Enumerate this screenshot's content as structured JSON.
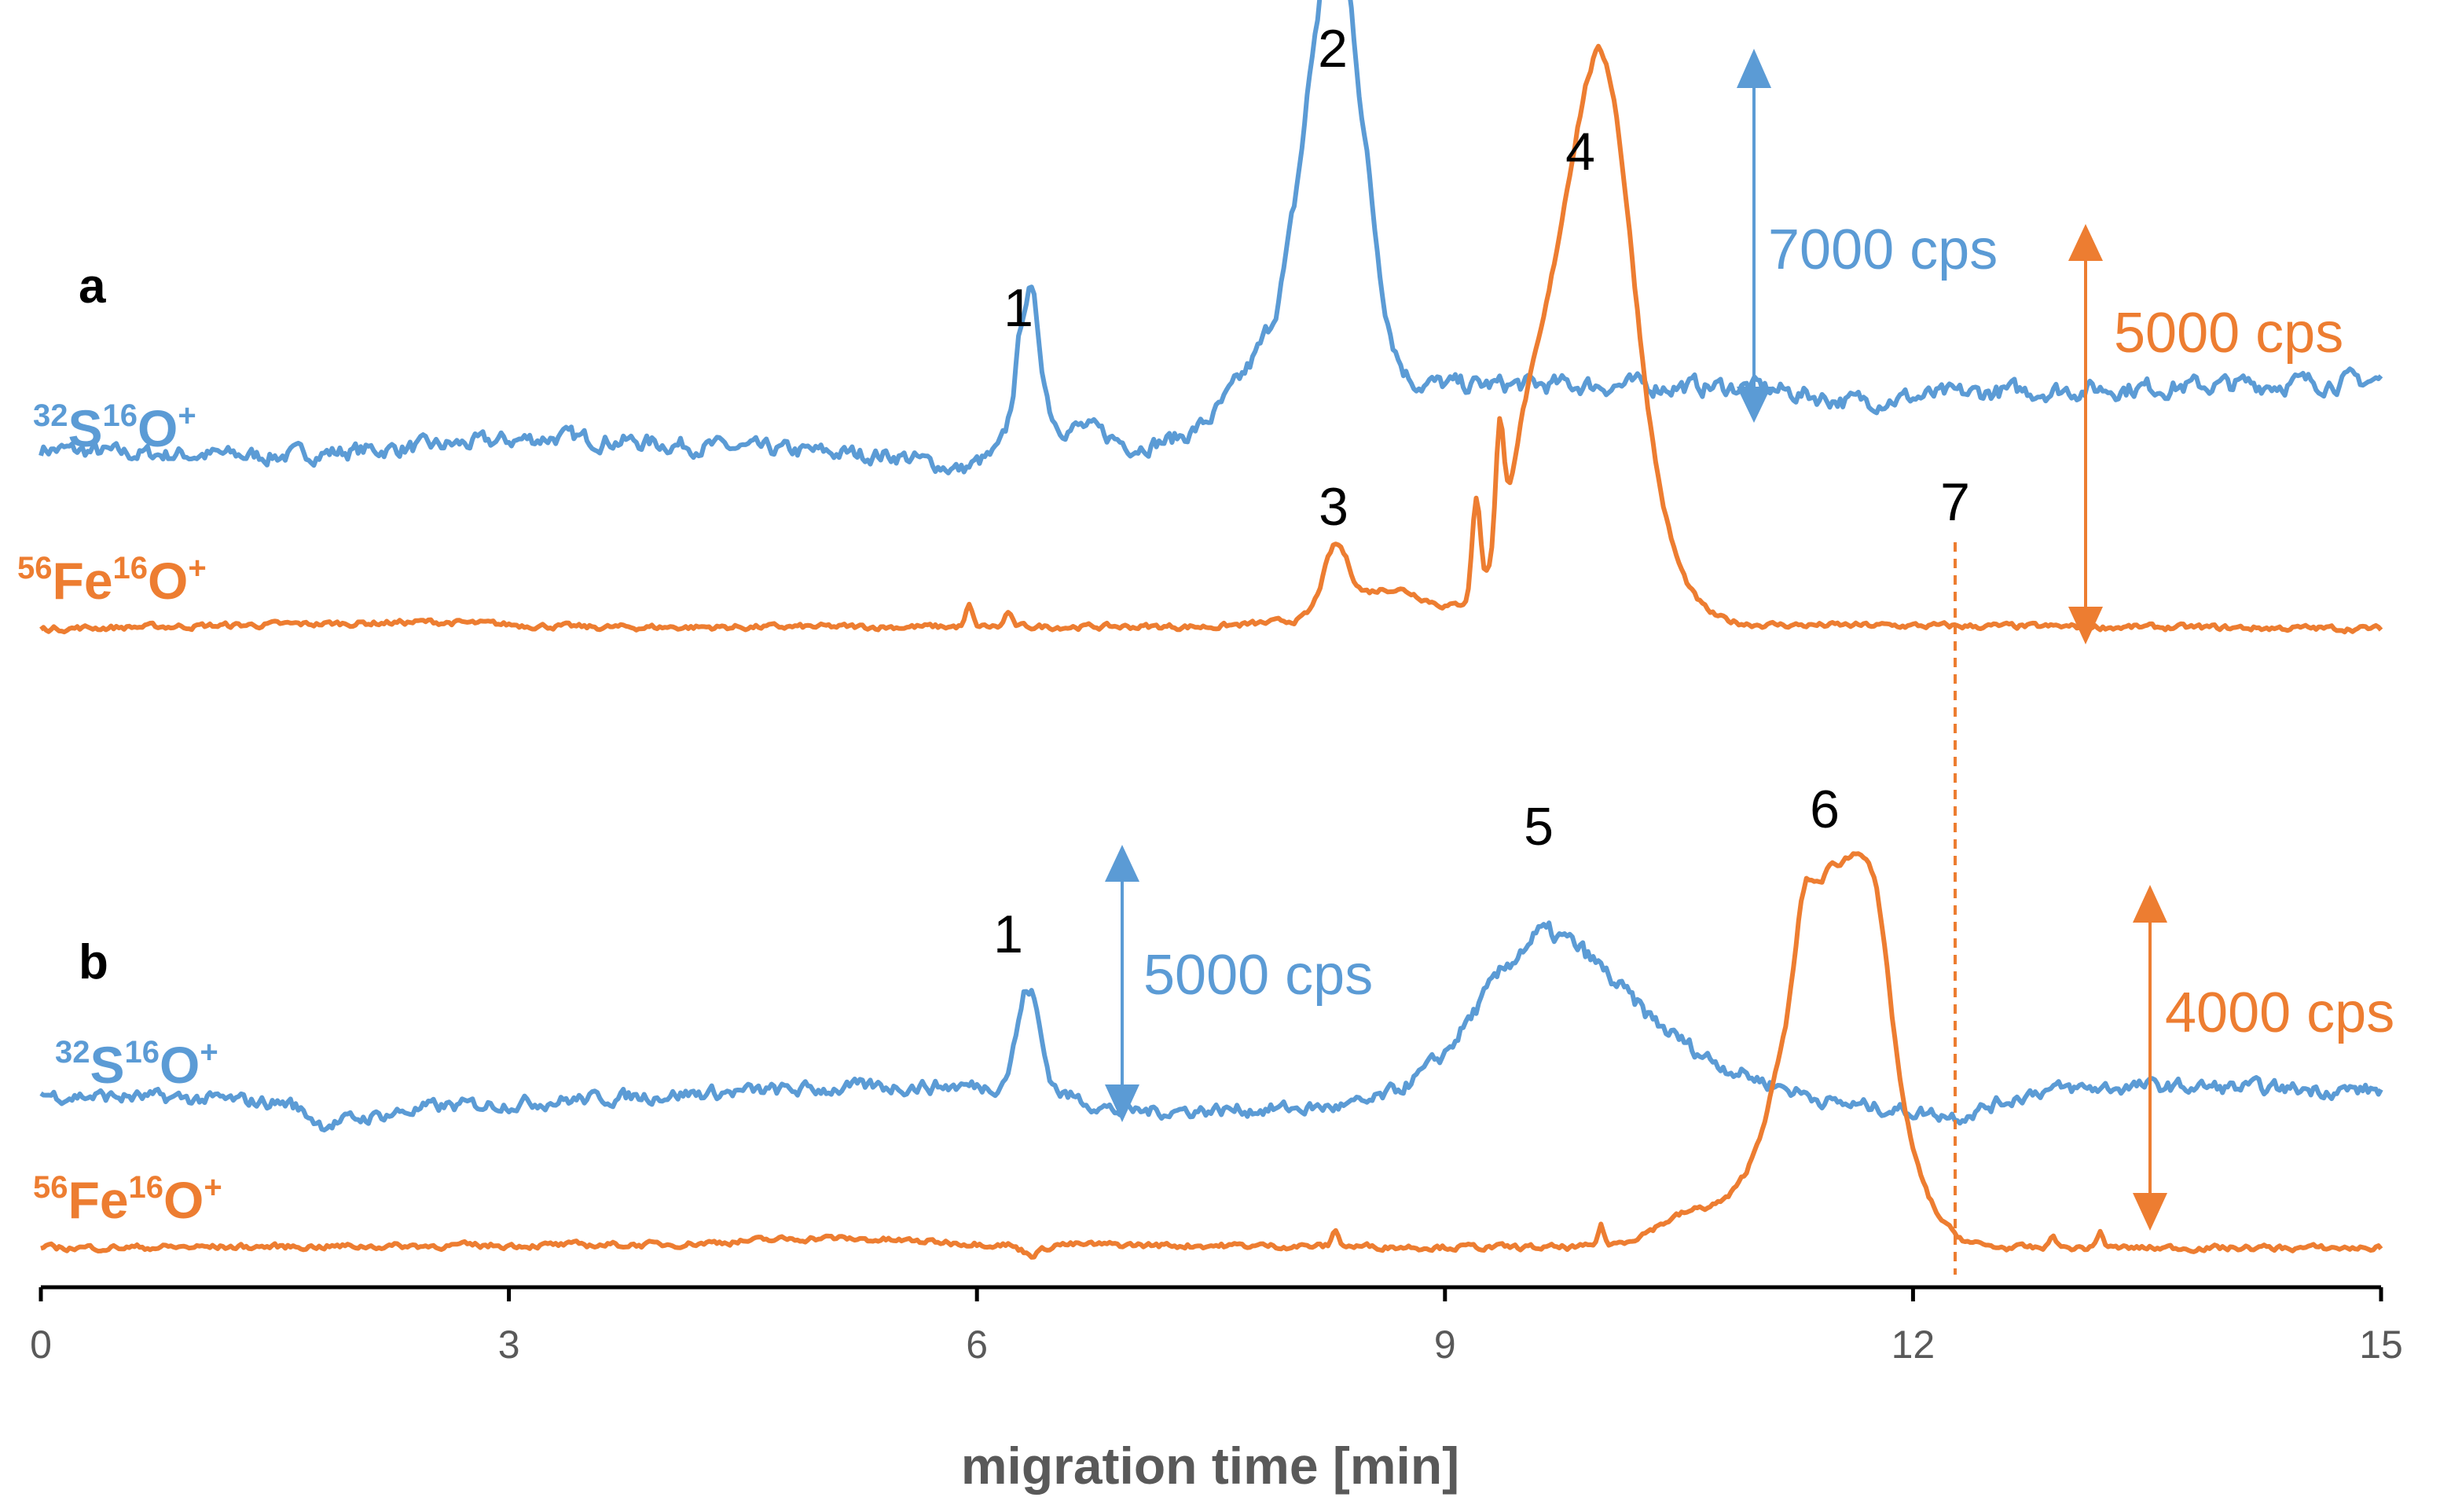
{
  "chart_data": {
    "type": "line",
    "title": "",
    "xlabel": "migration time [min]",
    "ylabel": "",
    "xlim": [
      0,
      15
    ],
    "x_ticks": [
      "0",
      "3",
      "6",
      "9",
      "12",
      "15"
    ],
    "colors": {
      "sulfur": "#5b9bd5",
      "iron": "#ed7d31",
      "axis": "#000000"
    },
    "panels": [
      {
        "label": "a",
        "series": [
          {
            "name": "32S16O+",
            "label": {
              "m1": "32",
              "e1": "S",
              "m2": "16",
              "e2": "O",
              "charge": "+"
            },
            "color": "#5b9bd5",
            "baseline": [
              [
                0,
                1150
              ],
              [
                0.5,
                1050
              ],
              [
                1.5,
                1000
              ],
              [
                2.5,
                1200
              ],
              [
                3.3,
                1400
              ],
              [
                4.5,
                1150
              ],
              [
                5.5,
                1000
              ],
              [
                5.9,
                700
              ],
              [
                6.1,
                1000
              ],
              [
                6.45,
                1600
              ],
              [
                6.7,
                1600
              ],
              [
                7,
                1200
              ],
              [
                7.5,
                1400
              ],
              [
                8.6,
                2200
              ],
              [
                8.9,
                2500
              ],
              [
                10,
                2500
              ],
              [
                11,
                2450
              ],
              [
                11.6,
                2150
              ],
              [
                12.5,
                2350
              ],
              [
                13.5,
                2450
              ],
              [
                15,
                2600
              ]
            ],
            "peaks": [
              [
                6.33,
                3100,
                0.07
              ],
              [
                8.3,
                9500,
                0.18
              ],
              [
                7.9,
                1500,
                0.25
              ]
            ]
          },
          {
            "name": "56Fe16O+",
            "label": {
              "m1": "56",
              "e1": "Fe",
              "m2": "16",
              "e2": "O",
              "charge": "+"
            },
            "color": "#ed7d31",
            "baseline": [
              [
                0,
                0
              ],
              [
                2.5,
                100
              ],
              [
                3.5,
                20
              ],
              [
                6,
                30
              ],
              [
                7.5,
                30
              ],
              [
                8,
                100
              ],
              [
                15,
                0
              ]
            ],
            "peaks": [
              [
                5.95,
                300,
                0.02
              ],
              [
                6.2,
                220,
                0.02
              ],
              [
                8.3,
                950,
                0.08
              ],
              [
                8.65,
                500,
                0.25
              ],
              [
                9.2,
                1400,
                0.025
              ],
              [
                9.35,
                1750,
                0.025
              ],
              [
                9.5,
                500,
                0.08
              ],
              [
                9.9,
                6400,
                0.3
              ],
              [
                10.05,
                2500,
                0.15
              ]
            ]
          }
        ],
        "peak_labels": [
          {
            "text": "1",
            "x": 6.3
          },
          {
            "text": "2",
            "x": 8.3
          },
          {
            "text": "3",
            "x": 8.3
          },
          {
            "text": "4",
            "x": 9.9
          }
        ],
        "scale_bars": [
          {
            "text": "7000 cps",
            "x": 11,
            "span_cps": 7000,
            "color": "#5b9bd5"
          },
          {
            "text": "5000 cps",
            "x": 13.15,
            "span_cps": 5000,
            "color": "#ed7d31"
          }
        ]
      },
      {
        "label": "b",
        "series": [
          {
            "name": "32S16O+",
            "label": {
              "m1": "32",
              "e1": "S",
              "m2": "16",
              "e2": "O",
              "charge": "+"
            },
            "color": "#5b9bd5",
            "baseline": [
              [
                0,
                500
              ],
              [
                1,
                400
              ],
              [
                1.6,
                300
              ],
              [
                1.8,
                -200
              ],
              [
                2.5,
                200
              ],
              [
                4,
                500
              ],
              [
                5.5,
                700
              ],
              [
                6.4,
                700
              ],
              [
                6.9,
                100
              ],
              [
                8.5,
                200
              ],
              [
                9,
                600
              ],
              [
                9.6,
                1800
              ],
              [
                10.5,
                1400
              ],
              [
                11.5,
                300
              ],
              [
                12.3,
                0
              ],
              [
                12.8,
                600
              ],
              [
                13.5,
                700
              ],
              [
                15,
                600
              ]
            ],
            "peaks": [
              [
                6.33,
                2300,
                0.07
              ],
              [
                9.65,
                2500,
                0.45
              ]
            ]
          },
          {
            "name": "56Fe16O+",
            "label": {
              "m1": "56",
              "e1": "Fe",
              "m2": "16",
              "e2": "O",
              "charge": "+"
            },
            "color": "#ed7d31",
            "baseline": [
              [
                0,
                0
              ],
              [
                4,
                50
              ],
              [
                5,
                150
              ],
              [
                6.2,
                50
              ],
              [
                6.35,
                -100
              ],
              [
                6.5,
                50
              ],
              [
                10,
                0
              ],
              [
                15,
                0
              ]
            ],
            "peaks": [
              [
                8.3,
                250,
                0.02
              ],
              [
                10,
                300,
                0.02
              ],
              [
                11.5,
                5600,
                0.3
              ],
              [
                11.75,
                1500,
                0.1
              ],
              [
                11.3,
                800,
                0.05
              ],
              [
                10.6,
                500,
                0.25
              ],
              [
                12.9,
                200,
                0.02
              ],
              [
                13.2,
                250,
                0.02
              ]
            ]
          }
        ],
        "peak_labels": [
          {
            "text": "1",
            "x": 6.3
          },
          {
            "text": "5",
            "x": 9.65
          },
          {
            "text": "6",
            "x": 11.5
          }
        ],
        "scale_bars": [
          {
            "text": "5000 cps",
            "x": 6.95,
            "span_cps": 5000,
            "color": "#5b9bd5"
          },
          {
            "text": "4000 cps",
            "x": 13.5,
            "span_cps": 4000,
            "color": "#ed7d31"
          }
        ]
      }
    ],
    "reference_line": {
      "text": "7",
      "x": 12.35,
      "style": "dashed",
      "color": "#ed7d31"
    }
  }
}
